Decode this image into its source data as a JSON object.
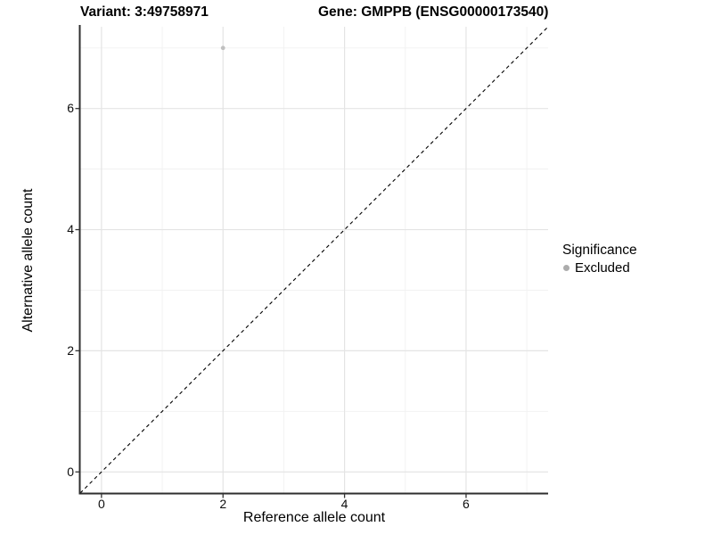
{
  "chart_data": {
    "type": "scatter",
    "title_variant": "Variant: 3:49758971",
    "title_gene": "Gene: GMPPB (ENSG00000173540)",
    "xlabel": "Reference allele count",
    "ylabel": "Alternative allele count",
    "xlim": [
      -0.35,
      7.35
    ],
    "ylim": [
      -0.35,
      7.35
    ],
    "x_ticks": [
      0,
      2,
      4,
      6
    ],
    "x_tick_labels": [
      "0",
      "2",
      "4",
      "6"
    ],
    "y_ticks": [
      0,
      2,
      4,
      6
    ],
    "y_tick_labels": [
      "0",
      "2",
      "4",
      "6"
    ],
    "minor_grid_x": [
      1,
      3,
      5,
      7
    ],
    "minor_grid_y": [
      1,
      3,
      5,
      7
    ],
    "grid": "major+minor",
    "series": [
      {
        "name": "Excluded",
        "color": "#c0c0c0",
        "points": [
          {
            "x": 2,
            "y": 7
          }
        ]
      }
    ],
    "reference_line": {
      "kind": "identity",
      "style": "dashed",
      "x1": -0.35,
      "y1": -0.35,
      "x2": 7.35,
      "y2": 7.35,
      "color": "#000000"
    },
    "legend": {
      "title": "Significance",
      "position": "right",
      "entries": [
        "Excluded"
      ],
      "dot_color": "#acacac"
    },
    "colors": {
      "axis_line": "#2e2e2e",
      "major_grid": "#e4e4e4",
      "minor_grid": "#f1f1f1",
      "tick_mark": "#333333"
    }
  }
}
